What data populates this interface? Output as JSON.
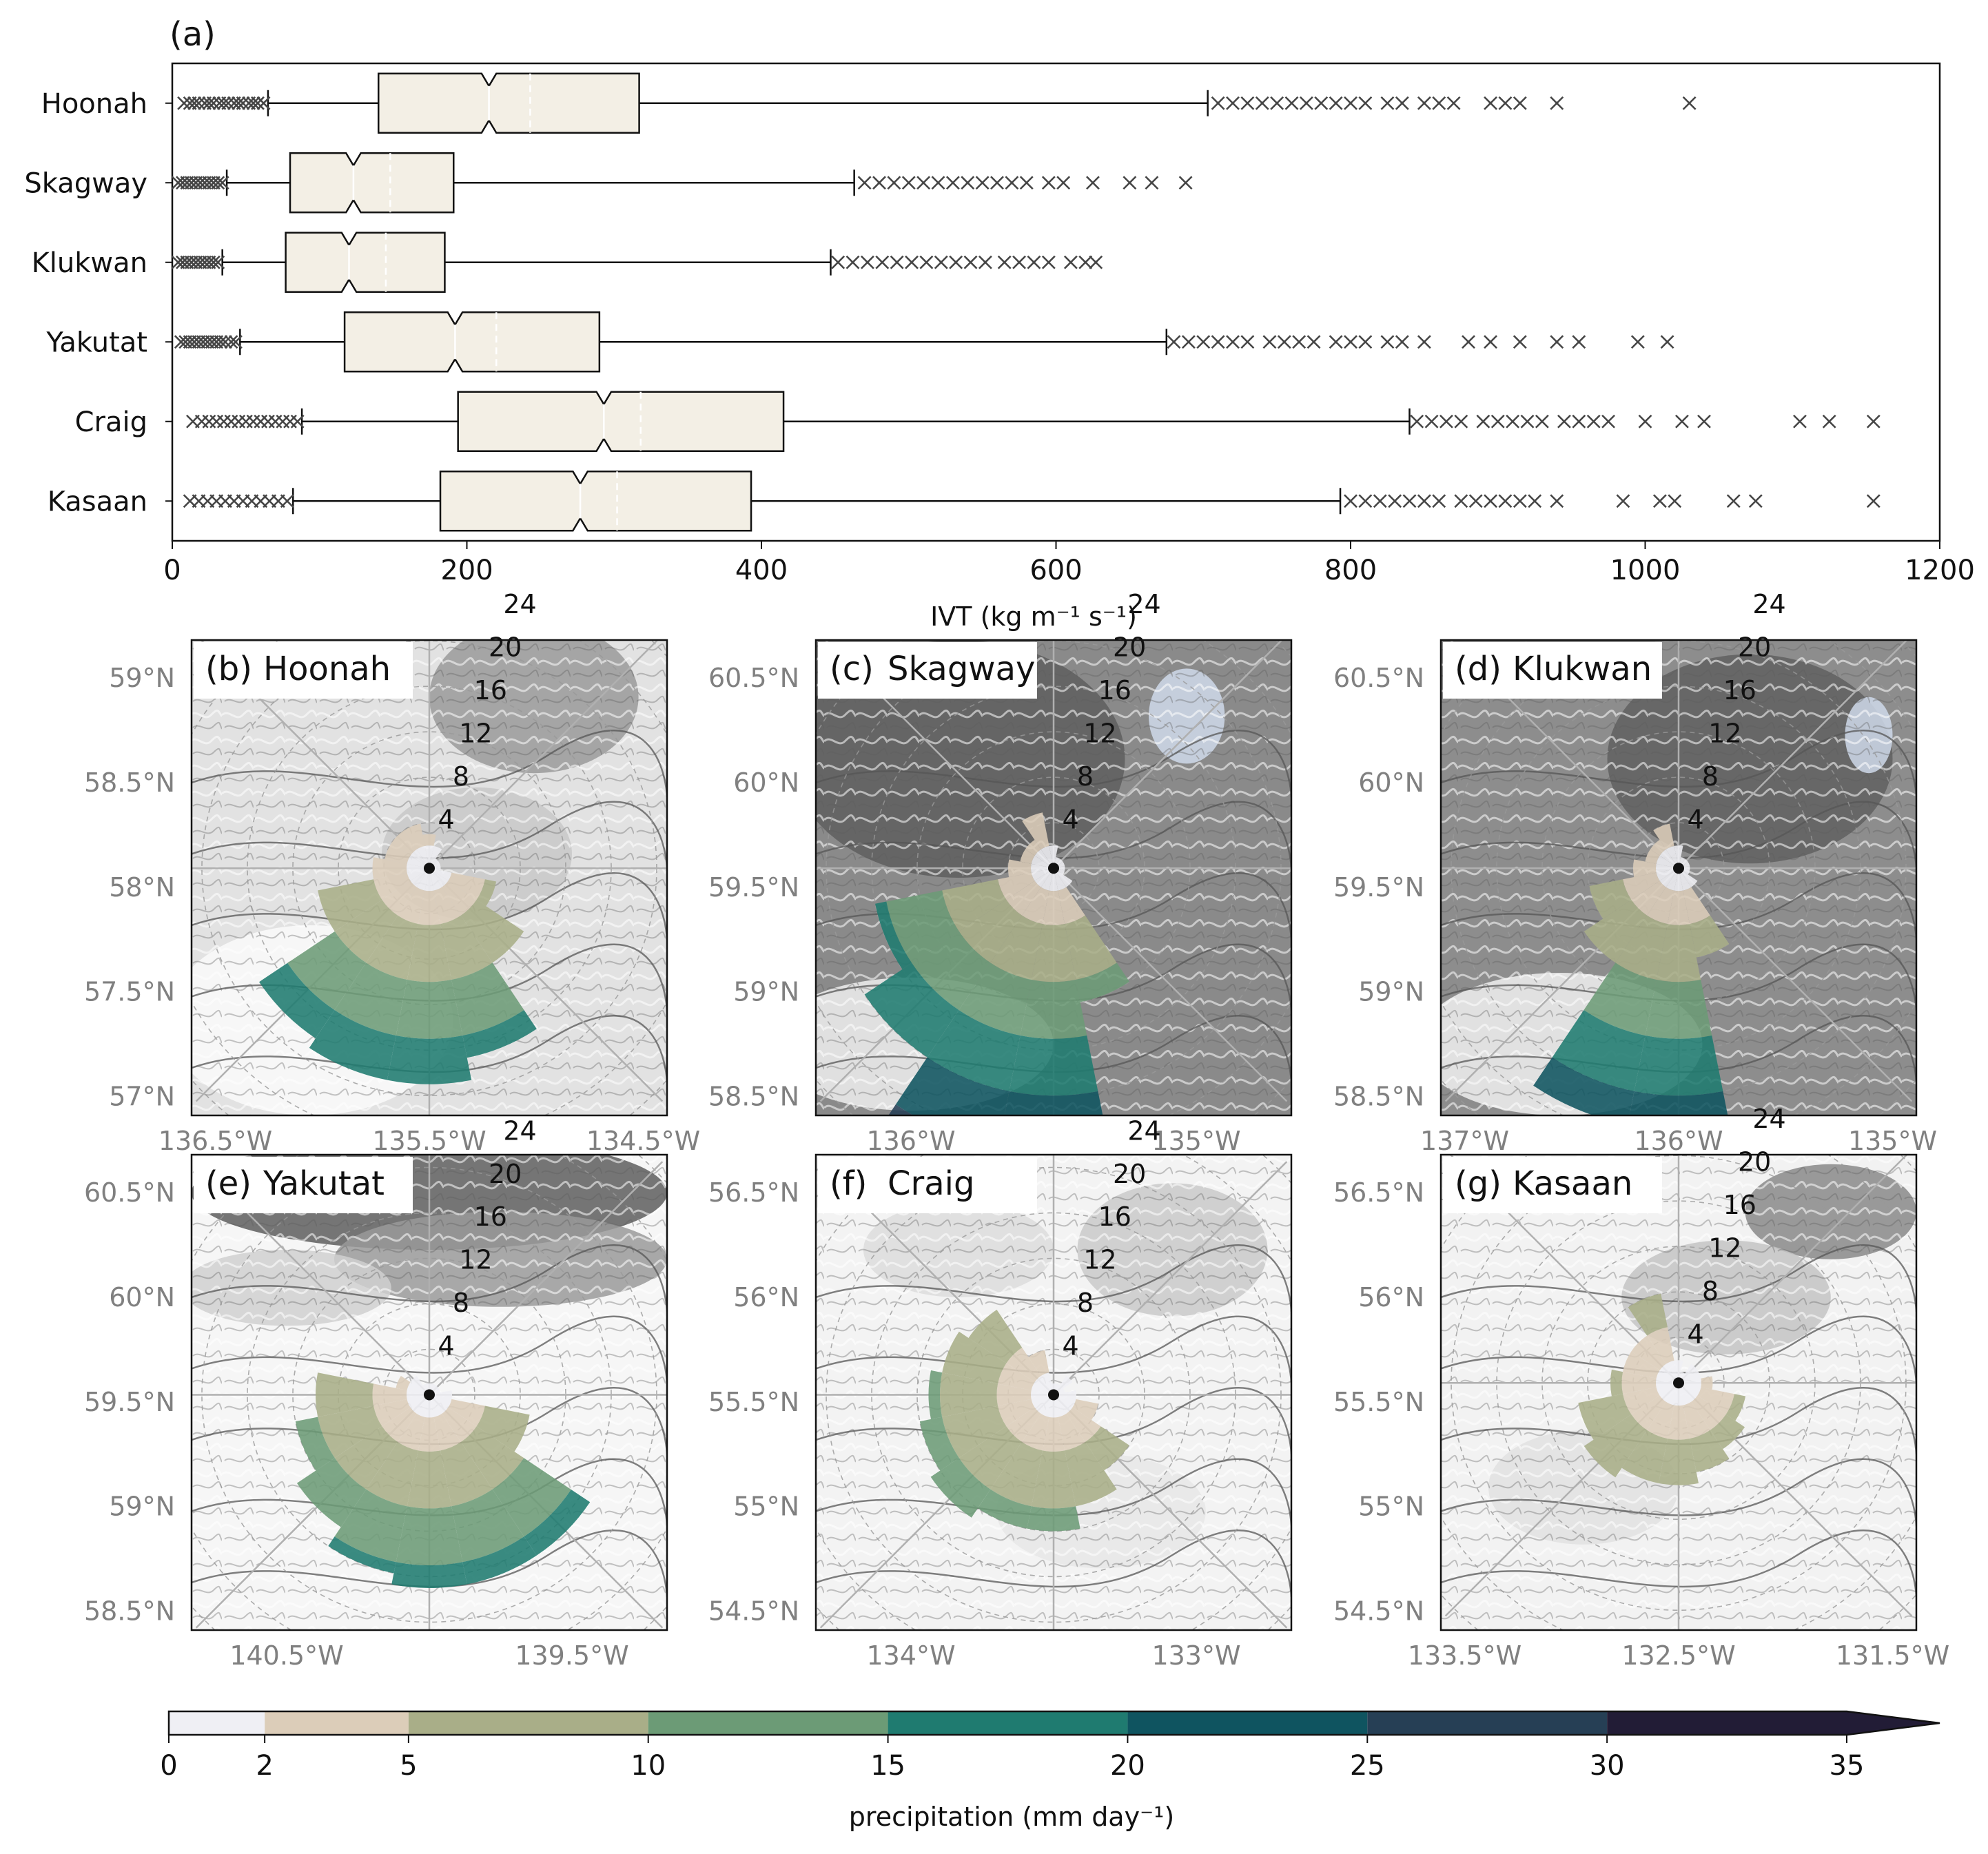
{
  "chart_data": [
    {
      "panel": "(a)",
      "type": "box",
      "orientation": "horizontal",
      "xlabel": "IVT (kg m⁻¹ s⁻¹)",
      "xlim": [
        0,
        1200
      ],
      "xticks": [
        "0",
        "200",
        "400",
        "600",
        "800",
        "1000",
        "1200"
      ],
      "notched": true,
      "box_color": "#f3efe5",
      "categories": [
        "Hoonah",
        "Skagway",
        "Klukwan",
        "Yakutat",
        "Craig",
        "Kasaan"
      ],
      "stats": [
        {
          "name": "Hoonah",
          "whislo": 65,
          "q1": 140,
          "med": 215,
          "mean": 243,
          "q3": 317,
          "whishi": 703,
          "notch_lo": 210,
          "notch_hi": 220,
          "outliers_low": [
            8,
            12,
            15,
            18,
            22,
            25,
            28,
            32,
            35,
            38,
            42,
            45,
            48,
            52,
            55,
            58,
            62
          ],
          "outliers_high": [
            710,
            720,
            730,
            740,
            750,
            760,
            770,
            780,
            790,
            800,
            810,
            825,
            835,
            850,
            860,
            870,
            895,
            905,
            915,
            940,
            1030
          ]
        },
        {
          "name": "Skagway",
          "whislo": 37,
          "q1": 80,
          "med": 123,
          "mean": 148,
          "q3": 191,
          "whishi": 463,
          "notch_lo": 118,
          "notch_hi": 128,
          "outliers_low": [
            4,
            7,
            10,
            13,
            16,
            19,
            22,
            25,
            28,
            31,
            34
          ],
          "outliers_high": [
            470,
            480,
            490,
            500,
            510,
            520,
            530,
            540,
            550,
            560,
            570,
            580,
            595,
            605,
            625,
            650,
            665,
            688
          ]
        },
        {
          "name": "Klukwan",
          "whislo": 34,
          "q1": 77,
          "med": 120,
          "mean": 145,
          "q3": 185,
          "whishi": 447,
          "notch_lo": 115,
          "notch_hi": 125,
          "outliers_low": [
            4,
            7,
            10,
            13,
            16,
            19,
            22,
            25,
            28,
            31
          ],
          "outliers_high": [
            452,
            462,
            472,
            482,
            492,
            502,
            512,
            522,
            532,
            542,
            552,
            565,
            575,
            585,
            595,
            610,
            620,
            627
          ]
        },
        {
          "name": "Yakutat",
          "whislo": 46,
          "q1": 117,
          "med": 192,
          "mean": 220,
          "q3": 290,
          "whishi": 675,
          "notch_lo": 187,
          "notch_hi": 197,
          "outliers_low": [
            6,
            9,
            12,
            15,
            18,
            21,
            24,
            27,
            30,
            33,
            36,
            40,
            43
          ],
          "outliers_high": [
            680,
            690,
            700,
            710,
            720,
            730,
            745,
            755,
            765,
            775,
            790,
            800,
            810,
            825,
            835,
            850,
            880,
            895,
            915,
            940,
            955,
            995,
            1015
          ]
        },
        {
          "name": "Craig",
          "whislo": 88,
          "q1": 194,
          "med": 293,
          "mean": 318,
          "q3": 415,
          "whishi": 840,
          "notch_lo": 288,
          "notch_hi": 298,
          "outliers_low": [
            14,
            20,
            25,
            30,
            35,
            40,
            45,
            50,
            55,
            60,
            65,
            70,
            75,
            80,
            85
          ],
          "outliers_high": [
            845,
            855,
            865,
            875,
            890,
            900,
            910,
            920,
            930,
            945,
            955,
            965,
            975,
            1000,
            1025,
            1040,
            1105,
            1125,
            1155
          ]
        },
        {
          "name": "Kasaan",
          "whislo": 82,
          "q1": 182,
          "med": 277,
          "mean": 302,
          "q3": 393,
          "whishi": 793,
          "notch_lo": 272,
          "notch_hi": 282,
          "outliers_low": [
            12,
            18,
            24,
            30,
            36,
            42,
            48,
            54,
            60,
            66,
            72,
            78
          ],
          "outliers_high": [
            800,
            810,
            820,
            830,
            840,
            850,
            860,
            875,
            885,
            895,
            905,
            915,
            925,
            940,
            985,
            1010,
            1020,
            1060,
            1075,
            1155
          ]
        }
      ]
    },
    {
      "panel": "(b)-(g)",
      "type": "polar-bar",
      "units": "mm day⁻¹",
      "ring_labels": [
        "4",
        "8",
        "12",
        "16",
        "20",
        "24"
      ],
      "colorbar": {
        "label": "precipitation (mm day⁻¹)",
        "bounds": [
          0,
          2,
          5,
          10,
          15,
          20,
          25,
          30,
          35
        ],
        "tick_labels": [
          "0",
          "2",
          "5",
          "10",
          "15",
          "20",
          "25",
          "30",
          "35"
        ],
        "colors": [
          "#efeff4",
          "#dccdb9",
          "#a9ae88",
          "#6c9b76",
          "#1f7b70",
          "#0f5460",
          "#263f55",
          "#221c36"
        ],
        "extend": "max"
      },
      "sites": [
        {
          "panel": "(b)",
          "name": "Hoonah",
          "lat_ticks": [
            "59°N",
            "58.5°N",
            "58°N",
            "57.5°N",
            "57°N"
          ],
          "lon_ticks": [
            "136.5°W",
            "135.5°W",
            "134.5°W"
          ],
          "sectors": [
            {
              "direction_deg": 0,
              "value": 3
            },
            {
              "direction_deg": 22.5,
              "value": 2
            },
            {
              "direction_deg": 45,
              "value": 1
            },
            {
              "direction_deg": 67.5,
              "value": 1
            },
            {
              "direction_deg": 90,
              "value": 1
            },
            {
              "direction_deg": 112.5,
              "value": 6
            },
            {
              "direction_deg": 135,
              "value": 10
            },
            {
              "direction_deg": 157.5,
              "value": 17
            },
            {
              "direction_deg": 180,
              "value": 19
            },
            {
              "direction_deg": 202.5,
              "value": 19
            },
            {
              "direction_deg": 225,
              "value": 18
            },
            {
              "direction_deg": 247.5,
              "value": 10
            },
            {
              "direction_deg": 270,
              "value": 5
            },
            {
              "direction_deg": 292.5,
              "value": 4
            },
            {
              "direction_deg": 315,
              "value": 4
            },
            {
              "direction_deg": 337.5,
              "value": 4
            }
          ]
        },
        {
          "panel": "(c)",
          "name": "Skagway",
          "lat_ticks": [
            "60.5°N",
            "60°N",
            "59.5°N",
            "59°N",
            "58.5°N"
          ],
          "lon_ticks": [
            "136°W",
            "135°W"
          ],
          "sectors": [
            {
              "direction_deg": 0,
              "value": 2
            },
            {
              "direction_deg": 22.5,
              "value": 1
            },
            {
              "direction_deg": 45,
              "value": 1
            },
            {
              "direction_deg": 67.5,
              "value": 1
            },
            {
              "direction_deg": 90,
              "value": 1
            },
            {
              "direction_deg": 112.5,
              "value": 1
            },
            {
              "direction_deg": 135,
              "value": 2
            },
            {
              "direction_deg": 157.5,
              "value": 12
            },
            {
              "direction_deg": 180,
              "value": 29
            },
            {
              "direction_deg": 202.5,
              "value": 29
            },
            {
              "direction_deg": 225,
              "value": 20
            },
            {
              "direction_deg": 247.5,
              "value": 16
            },
            {
              "direction_deg": 270,
              "value": 4
            },
            {
              "direction_deg": 292.5,
              "value": 3
            },
            {
              "direction_deg": 315,
              "value": 3
            },
            {
              "direction_deg": 337.5,
              "value": 5
            }
          ]
        },
        {
          "panel": "(d)",
          "name": "Klukwan",
          "lat_ticks": [
            "60.5°N",
            "60°N",
            "59.5°N",
            "59°N",
            "58.5°N"
          ],
          "lon_ticks": [
            "137°W",
            "136°W",
            "135°W"
          ],
          "sectors": [
            {
              "direction_deg": 0,
              "value": 2
            },
            {
              "direction_deg": 22.5,
              "value": 1
            },
            {
              "direction_deg": 45,
              "value": 1
            },
            {
              "direction_deg": 67.5,
              "value": 1
            },
            {
              "direction_deg": 90,
              "value": 1
            },
            {
              "direction_deg": 112.5,
              "value": 1
            },
            {
              "direction_deg": 135,
              "value": 2
            },
            {
              "direction_deg": 157.5,
              "value": 8
            },
            {
              "direction_deg": 180,
              "value": 23
            },
            {
              "direction_deg": 202.5,
              "value": 23
            },
            {
              "direction_deg": 225,
              "value": 10
            },
            {
              "direction_deg": 247.5,
              "value": 8
            },
            {
              "direction_deg": 270,
              "value": 4
            },
            {
              "direction_deg": 292.5,
              "value": 3
            },
            {
              "direction_deg": 315,
              "value": 3
            },
            {
              "direction_deg": 337.5,
              "value": 4
            }
          ]
        },
        {
          "panel": "(e)",
          "name": "Yakutat",
          "lat_ticks": [
            "60.5°N",
            "60°N",
            "59.5°N",
            "59°N",
            "58.5°N"
          ],
          "lon_ticks": [
            "140.5°W",
            "139.5°W"
          ],
          "sectors": [
            {
              "direction_deg": 0,
              "value": 1
            },
            {
              "direction_deg": 22.5,
              "value": 1
            },
            {
              "direction_deg": 45,
              "value": 1
            },
            {
              "direction_deg": 67.5,
              "value": 1
            },
            {
              "direction_deg": 90,
              "value": 2
            },
            {
              "direction_deg": 112.5,
              "value": 9
            },
            {
              "direction_deg": 135,
              "value": 17
            },
            {
              "direction_deg": 157.5,
              "value": 17
            },
            {
              "direction_deg": 180,
              "value": 17
            },
            {
              "direction_deg": 202.5,
              "value": 16
            },
            {
              "direction_deg": 225,
              "value": 14
            },
            {
              "direction_deg": 247.5,
              "value": 12
            },
            {
              "direction_deg": 270,
              "value": 10
            },
            {
              "direction_deg": 292.5,
              "value": 3
            },
            {
              "direction_deg": 315,
              "value": 2
            },
            {
              "direction_deg": 337.5,
              "value": 1
            }
          ]
        },
        {
          "panel": "(f)",
          "name": "Craig",
          "lat_ticks": [
            "56.5°N",
            "56°N",
            "55.5°N",
            "55°N",
            "54.5°N"
          ],
          "lon_ticks": [
            "134°W",
            "133°W"
          ],
          "sectors": [
            {
              "direction_deg": 0,
              "value": 1
            },
            {
              "direction_deg": 22.5,
              "value": 1
            },
            {
              "direction_deg": 45,
              "value": 2
            },
            {
              "direction_deg": 67.5,
              "value": 1
            },
            {
              "direction_deg": 90,
              "value": 2
            },
            {
              "direction_deg": 112.5,
              "value": 4
            },
            {
              "direction_deg": 135,
              "value": 8
            },
            {
              "direction_deg": 157.5,
              "value": 10
            },
            {
              "direction_deg": 180,
              "value": 12
            },
            {
              "direction_deg": 202.5,
              "value": 12
            },
            {
              "direction_deg": 225,
              "value": 13
            },
            {
              "direction_deg": 247.5,
              "value": 12
            },
            {
              "direction_deg": 270,
              "value": 11
            },
            {
              "direction_deg": 292.5,
              "value": 10
            },
            {
              "direction_deg": 315,
              "value": 9
            },
            {
              "direction_deg": 337.5,
              "value": 4
            }
          ]
        },
        {
          "panel": "(g)",
          "name": "Kasaan",
          "lat_ticks": [
            "56.5°N",
            "56°N",
            "55.5°N",
            "55°N",
            "54.5°N"
          ],
          "lon_ticks": [
            "133.5°W",
            "132.5°W",
            "131.5°W"
          ],
          "sectors": [
            {
              "direction_deg": 0,
              "value": 2
            },
            {
              "direction_deg": 22.5,
              "value": 1
            },
            {
              "direction_deg": 45,
              "value": 2
            },
            {
              "direction_deg": 67.5,
              "value": 2
            },
            {
              "direction_deg": 90,
              "value": 3
            },
            {
              "direction_deg": 112.5,
              "value": 6
            },
            {
              "direction_deg": 135,
              "value": 7
            },
            {
              "direction_deg": 157.5,
              "value": 8
            },
            {
              "direction_deg": 180,
              "value": 9
            },
            {
              "direction_deg": 202.5,
              "value": 9
            },
            {
              "direction_deg": 225,
              "value": 10
            },
            {
              "direction_deg": 247.5,
              "value": 9
            },
            {
              "direction_deg": 270,
              "value": 6
            },
            {
              "direction_deg": 292.5,
              "value": 5
            },
            {
              "direction_deg": 315,
              "value": 5
            },
            {
              "direction_deg": 337.5,
              "value": 8
            }
          ]
        }
      ]
    }
  ]
}
